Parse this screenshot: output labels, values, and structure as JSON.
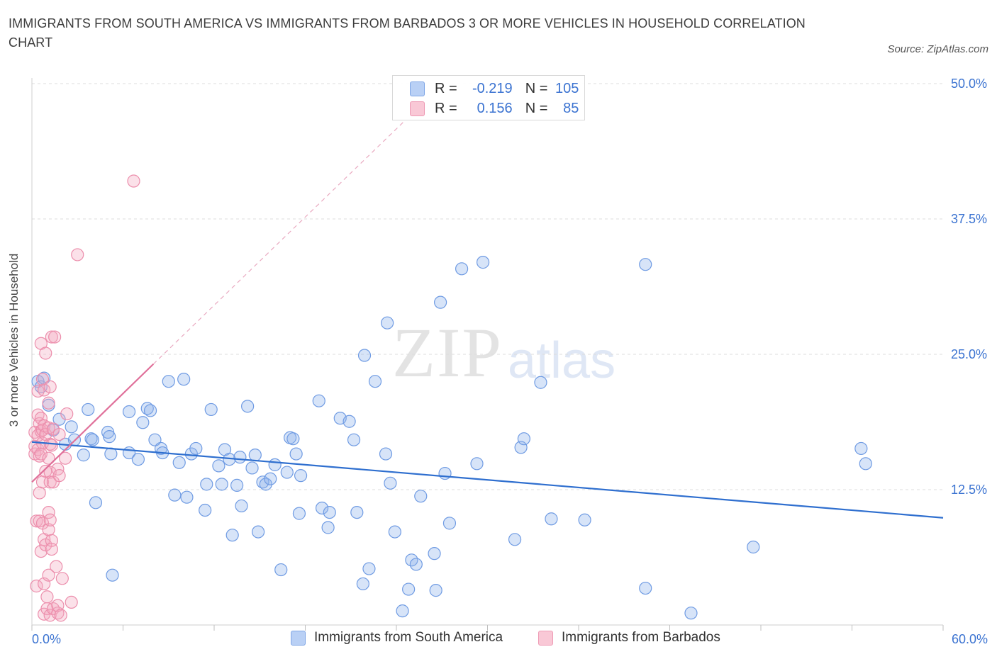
{
  "title": "IMMIGRANTS FROM SOUTH AMERICA VS IMMIGRANTS FROM BARBADOS 3 OR MORE VEHICLES IN HOUSEHOLD CORRELATION CHART",
  "source": "Source: ZipAtlas.com",
  "watermark": {
    "zip": "ZIP",
    "atlas": "atlas"
  },
  "colors": {
    "blue": "#5b8fe0",
    "blue_line": "#2f6fcf",
    "pink": "#ee7fa1",
    "pink_line": "#e0709a",
    "axis_text": "#3b73d1"
  },
  "legend": {
    "rows": [
      {
        "r_label": "R =",
        "r_value": "-0.219",
        "n_label": "N =",
        "n_value": "105"
      },
      {
        "r_label": "R =",
        "r_value": "0.156",
        "n_label": "N =",
        "n_value": "85"
      }
    ]
  },
  "bottom_legend": [
    "Immigrants from South America",
    "Immigrants from Barbados"
  ],
  "chart_data": {
    "type": "scatter",
    "title": "IMMIGRANTS FROM SOUTH AMERICA VS IMMIGRANTS FROM BARBADOS 3 OR MORE VEHICLES IN HOUSEHOLD CORRELATION CHART",
    "xlabel": "",
    "ylabel": "3 or more Vehicles in Household",
    "xlim": [
      0,
      60
    ],
    "ylim": [
      0,
      50
    ],
    "x_tick_labels": [
      "0.0%",
      "60.0%"
    ],
    "y_ticks": [
      12.5,
      25.0,
      37.5,
      50.0
    ],
    "y_tick_labels": [
      "12.5%",
      "25.0%",
      "37.5%",
      "50.0%"
    ],
    "grid": true,
    "series": [
      {
        "name": "Immigrants from South America",
        "color": "#5b8fe0",
        "R": -0.219,
        "N": 105,
        "trend": {
          "x": [
            0.0,
            60.0
          ],
          "y": [
            16.9,
            9.9
          ]
        },
        "points": [
          [
            0.4,
            22.5
          ],
          [
            0.6,
            22.0
          ],
          [
            0.8,
            22.8
          ],
          [
            1.1,
            20.3
          ],
          [
            1.4,
            18.0
          ],
          [
            1.8,
            19.0
          ],
          [
            2.2,
            16.7
          ],
          [
            2.6,
            18.3
          ],
          [
            2.8,
            17.1
          ],
          [
            3.4,
            15.7
          ],
          [
            3.7,
            19.9
          ],
          [
            3.9,
            17.2
          ],
          [
            4.0,
            17.1
          ],
          [
            4.2,
            11.3
          ],
          [
            5.0,
            17.8
          ],
          [
            5.1,
            17.4
          ],
          [
            5.2,
            15.8
          ],
          [
            5.3,
            4.6
          ],
          [
            6.4,
            19.7
          ],
          [
            6.4,
            15.9
          ],
          [
            7.0,
            15.3
          ],
          [
            7.3,
            18.7
          ],
          [
            7.6,
            20.0
          ],
          [
            7.8,
            19.8
          ],
          [
            8.1,
            17.1
          ],
          [
            8.5,
            16.3
          ],
          [
            8.6,
            15.9
          ],
          [
            9.0,
            22.5
          ],
          [
            9.4,
            12.0
          ],
          [
            9.7,
            15.0
          ],
          [
            10.0,
            22.7
          ],
          [
            10.2,
            11.8
          ],
          [
            10.5,
            15.8
          ],
          [
            10.8,
            16.3
          ],
          [
            11.4,
            10.6
          ],
          [
            11.5,
            13.0
          ],
          [
            11.8,
            19.9
          ],
          [
            12.3,
            14.7
          ],
          [
            12.5,
            13.0
          ],
          [
            12.7,
            16.2
          ],
          [
            13.0,
            15.3
          ],
          [
            13.2,
            8.3
          ],
          [
            13.5,
            12.9
          ],
          [
            13.7,
            15.5
          ],
          [
            13.8,
            11.0
          ],
          [
            14.2,
            20.2
          ],
          [
            14.5,
            14.5
          ],
          [
            14.7,
            15.7
          ],
          [
            14.9,
            8.6
          ],
          [
            15.2,
            13.2
          ],
          [
            15.4,
            13.0
          ],
          [
            15.7,
            13.5
          ],
          [
            16.0,
            14.8
          ],
          [
            16.4,
            5.1
          ],
          [
            16.8,
            14.1
          ],
          [
            17.0,
            17.3
          ],
          [
            17.2,
            17.2
          ],
          [
            17.4,
            15.8
          ],
          [
            17.6,
            10.3
          ],
          [
            17.7,
            13.8
          ],
          [
            18.9,
            20.7
          ],
          [
            19.1,
            10.8
          ],
          [
            19.5,
            9.0
          ],
          [
            19.6,
            10.4
          ],
          [
            20.3,
            19.1
          ],
          [
            20.9,
            18.8
          ],
          [
            21.2,
            17.1
          ],
          [
            21.4,
            10.4
          ],
          [
            21.8,
            3.8
          ],
          [
            21.9,
            24.9
          ],
          [
            22.2,
            5.2
          ],
          [
            22.6,
            22.5
          ],
          [
            23.3,
            15.8
          ],
          [
            23.4,
            27.9
          ],
          [
            23.6,
            13.1
          ],
          [
            23.9,
            8.6
          ],
          [
            24.4,
            1.3
          ],
          [
            24.8,
            3.3
          ],
          [
            25.0,
            6.0
          ],
          [
            25.3,
            5.6
          ],
          [
            25.6,
            11.9
          ],
          [
            26.5,
            6.6
          ],
          [
            26.6,
            3.2
          ],
          [
            26.9,
            29.8
          ],
          [
            27.2,
            14.0
          ],
          [
            27.5,
            9.4
          ],
          [
            28.3,
            32.9
          ],
          [
            29.3,
            14.9
          ],
          [
            29.7,
            33.5
          ],
          [
            31.8,
            7.9
          ],
          [
            32.2,
            16.4
          ],
          [
            32.4,
            17.2
          ],
          [
            33.5,
            22.4
          ],
          [
            34.2,
            9.8
          ],
          [
            36.4,
            9.7
          ],
          [
            40.4,
            33.3
          ],
          [
            40.4,
            3.4
          ],
          [
            43.4,
            1.1
          ],
          [
            47.5,
            7.2
          ],
          [
            54.6,
            16.3
          ],
          [
            54.9,
            14.9
          ]
        ]
      },
      {
        "name": "Immigrants from Barbados",
        "color": "#ee7fa1",
        "R": 0.156,
        "N": 85,
        "trend": {
          "x": [
            0.0,
            8.0
          ],
          "y": [
            13.2,
            24.1
          ]
        },
        "trend_extended": {
          "x": [
            8.0,
            24.5
          ],
          "y": [
            24.1,
            46.5
          ]
        },
        "points": [
          [
            0.2,
            17.8
          ],
          [
            0.2,
            16.5
          ],
          [
            0.2,
            15.8
          ],
          [
            0.3,
            3.6
          ],
          [
            0.3,
            9.6
          ],
          [
            0.4,
            19.4
          ],
          [
            0.4,
            21.6
          ],
          [
            0.4,
            17.5
          ],
          [
            0.4,
            16.2
          ],
          [
            0.5,
            18.6
          ],
          [
            0.5,
            15.6
          ],
          [
            0.5,
            12.2
          ],
          [
            0.5,
            9.6
          ],
          [
            0.6,
            26.0
          ],
          [
            0.6,
            19.1
          ],
          [
            0.6,
            17.9
          ],
          [
            0.6,
            15.8
          ],
          [
            0.6,
            6.8
          ],
          [
            0.7,
            22.7
          ],
          [
            0.7,
            18.0
          ],
          [
            0.7,
            16.8
          ],
          [
            0.7,
            13.2
          ],
          [
            0.7,
            9.4
          ],
          [
            0.8,
            21.7
          ],
          [
            0.8,
            18.4
          ],
          [
            0.8,
            7.9
          ],
          [
            0.8,
            3.8
          ],
          [
            0.8,
            1.0
          ],
          [
            0.9,
            25.1
          ],
          [
            0.9,
            17.6
          ],
          [
            0.9,
            14.2
          ],
          [
            0.9,
            7.4
          ],
          [
            1.0,
            2.6
          ],
          [
            1.0,
            1.5
          ],
          [
            1.1,
            20.5
          ],
          [
            1.1,
            18.2
          ],
          [
            1.1,
            15.4
          ],
          [
            1.1,
            10.4
          ],
          [
            1.1,
            8.8
          ],
          [
            1.1,
            4.6
          ],
          [
            1.2,
            22.0
          ],
          [
            1.2,
            16.7
          ],
          [
            1.2,
            14.1
          ],
          [
            1.2,
            13.2
          ],
          [
            1.2,
            9.7
          ],
          [
            1.2,
            0.9
          ],
          [
            1.3,
            26.6
          ],
          [
            1.3,
            16.6
          ],
          [
            1.3,
            7.8
          ],
          [
            1.3,
            7.0
          ],
          [
            1.4,
            18.1
          ],
          [
            1.4,
            13.2
          ],
          [
            1.4,
            1.5
          ],
          [
            1.5,
            26.6
          ],
          [
            1.6,
            5.4
          ],
          [
            1.7,
            14.4
          ],
          [
            1.7,
            1.1
          ],
          [
            1.7,
            1.8
          ],
          [
            1.8,
            17.6
          ],
          [
            1.8,
            13.8
          ],
          [
            1.9,
            0.9
          ],
          [
            2.0,
            4.3
          ],
          [
            2.2,
            15.4
          ],
          [
            2.3,
            19.5
          ],
          [
            2.6,
            2.1
          ],
          [
            3.0,
            34.2
          ],
          [
            6.7,
            41.0
          ]
        ]
      }
    ]
  }
}
